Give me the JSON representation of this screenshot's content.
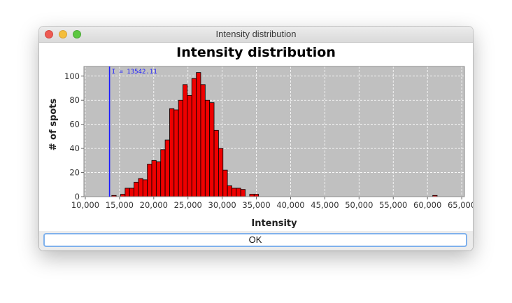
{
  "window": {
    "title": "Intensity distribution"
  },
  "buttons": {
    "ok_label": "OK"
  },
  "colors": {
    "plot_background": "#c0c0c0",
    "bar_fill": "#ee0000",
    "marker_line": "#1a1aff"
  },
  "chart_data": {
    "type": "bar",
    "title": "Intensity distribution",
    "xlabel": "Intensity",
    "ylabel": "# of spots",
    "xlim": [
      9800,
      65400
    ],
    "ylim": [
      0,
      108
    ],
    "x_ticks": [
      "10,000",
      "15,000",
      "20,000",
      "25,000",
      "30,000",
      "35,000",
      "40,000",
      "45,000",
      "50,000",
      "55,000",
      "60,000",
      "65,000"
    ],
    "y_ticks": [
      "0",
      "20",
      "40",
      "60",
      "80",
      "100"
    ],
    "grid": true,
    "bin_width": 650,
    "bins": [
      {
        "x": 14190,
        "count": 1
      },
      {
        "x": 15490,
        "count": 2
      },
      {
        "x": 16140,
        "count": 7
      },
      {
        "x": 16790,
        "count": 7
      },
      {
        "x": 17440,
        "count": 12
      },
      {
        "x": 18090,
        "count": 15
      },
      {
        "x": 18740,
        "count": 14
      },
      {
        "x": 19390,
        "count": 27
      },
      {
        "x": 20040,
        "count": 30
      },
      {
        "x": 20690,
        "count": 29
      },
      {
        "x": 21340,
        "count": 39
      },
      {
        "x": 21990,
        "count": 47
      },
      {
        "x": 22640,
        "count": 73
      },
      {
        "x": 23290,
        "count": 72
      },
      {
        "x": 23940,
        "count": 80
      },
      {
        "x": 24590,
        "count": 93
      },
      {
        "x": 25240,
        "count": 84
      },
      {
        "x": 25890,
        "count": 98
      },
      {
        "x": 26540,
        "count": 103
      },
      {
        "x": 27190,
        "count": 93
      },
      {
        "x": 27840,
        "count": 80
      },
      {
        "x": 28490,
        "count": 78
      },
      {
        "x": 29140,
        "count": 55
      },
      {
        "x": 29790,
        "count": 40
      },
      {
        "x": 30440,
        "count": 22
      },
      {
        "x": 31090,
        "count": 9
      },
      {
        "x": 31740,
        "count": 7
      },
      {
        "x": 32390,
        "count": 7
      },
      {
        "x": 33040,
        "count": 6
      },
      {
        "x": 34340,
        "count": 2
      },
      {
        "x": 34990,
        "count": 2
      },
      {
        "x": 61090,
        "count": 1
      }
    ],
    "annotations": [
      {
        "value": 13542.11,
        "label": "I = 13542.11"
      }
    ]
  }
}
